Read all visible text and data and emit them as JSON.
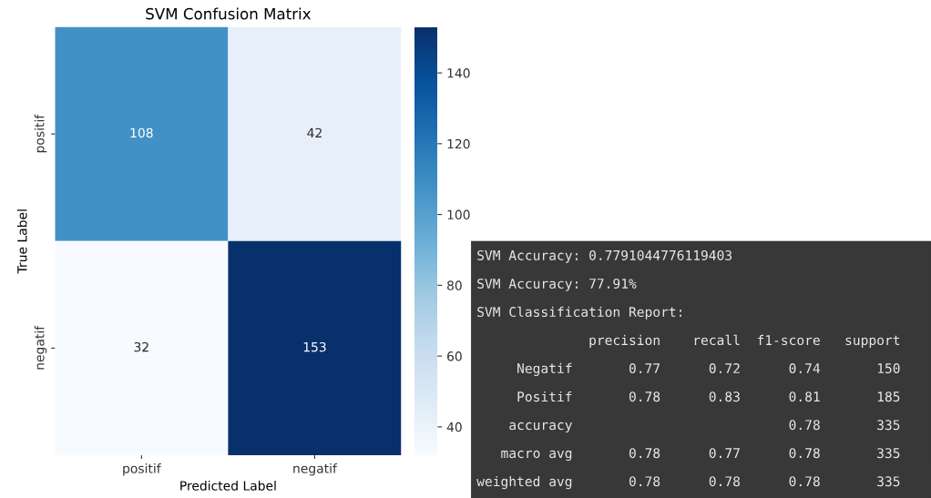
{
  "chart_data": [
    {
      "type": "heatmap",
      "title": "SVM Confusion Matrix",
      "xlabel": "Predicted Label",
      "ylabel": "True Label",
      "categories": [
        "positif",
        "negatif"
      ],
      "y_categories": [
        "positif",
        "negatif"
      ],
      "cells": [
        [
          108,
          42
        ],
        [
          32,
          153
        ]
      ],
      "data_labels": true,
      "clim": [
        32,
        153
      ],
      "cticks": [
        40,
        60,
        80,
        100,
        120,
        140
      ]
    },
    {
      "type": "other",
      "annotations": [
        "SVM Accuracy: 0.7791044776119403",
        "SVM Accuracy: 77.91%",
        "SVM Classification Report:",
        "              precision    recall  f1-score   support",
        "     Negatif       0.77      0.72      0.74       150",
        "     Positif       0.78      0.83      0.81       185",
        "    accuracy                           0.78       335",
        "   macro avg       0.78      0.77      0.78       335",
        "weighted avg       0.78      0.78      0.78       335"
      ]
    }
  ]
}
